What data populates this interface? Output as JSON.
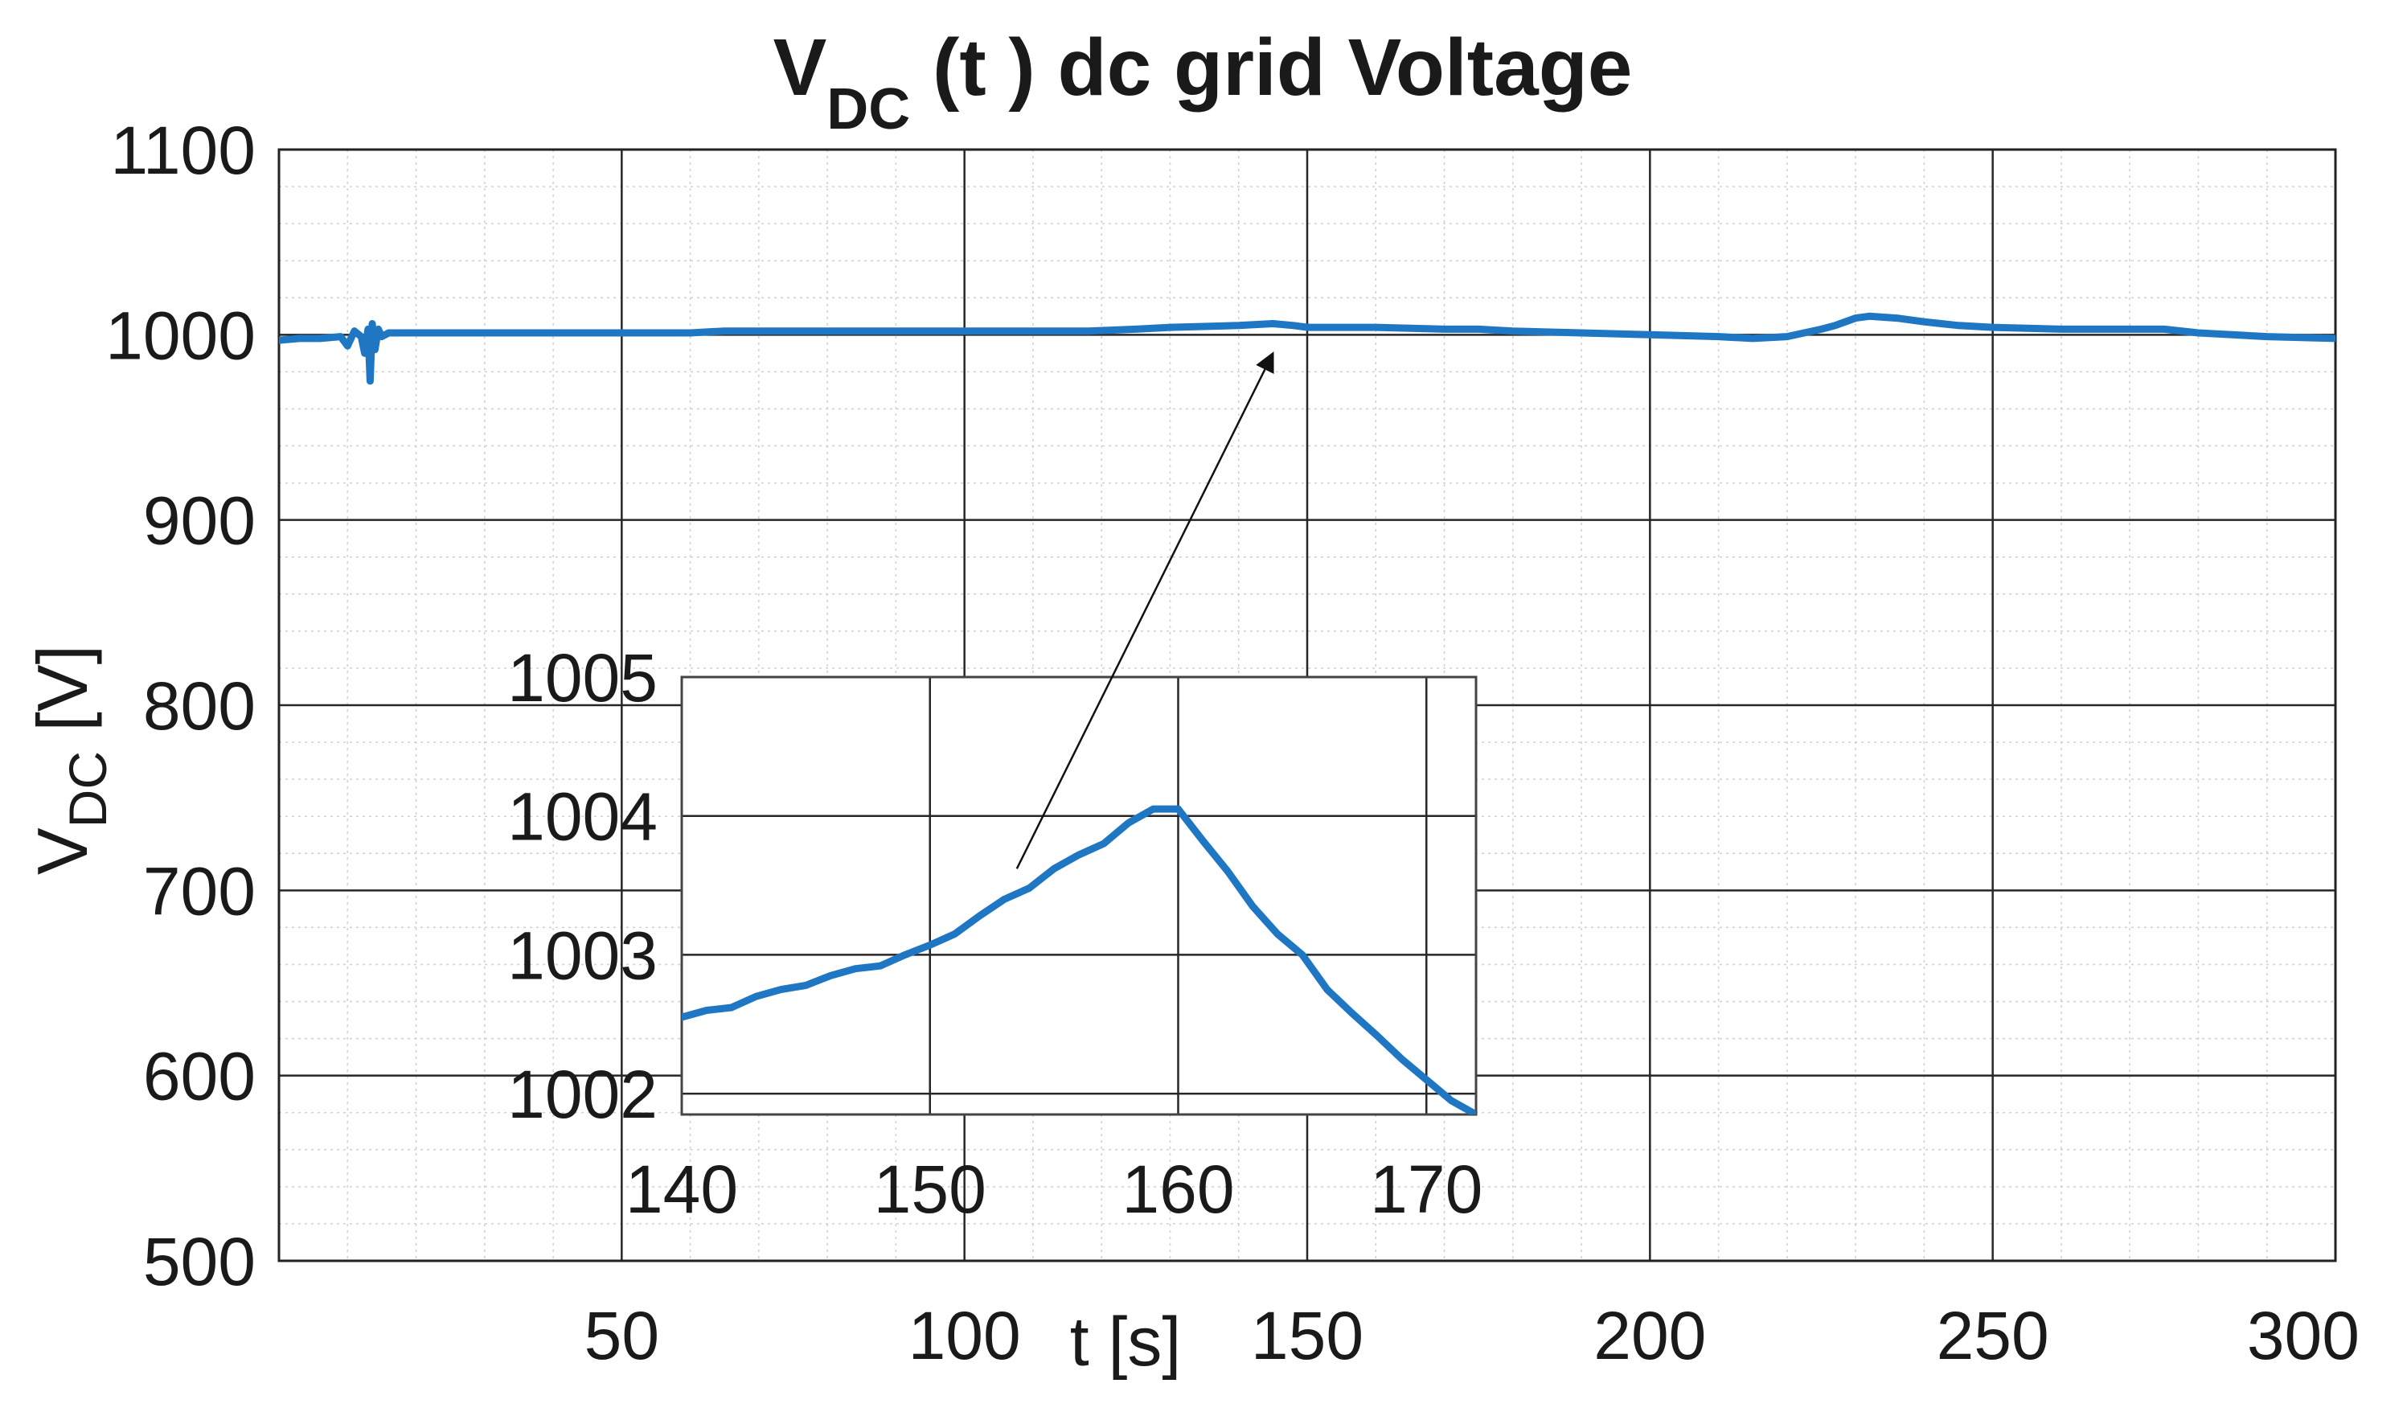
{
  "chart_data": {
    "type": "line",
    "title": {
      "main": "V",
      "subscript": "DC",
      "rest": " (t )  dc grid Voltage"
    },
    "xlabel": "t [s]",
    "ylabel": {
      "main": "V",
      "subscript": "DC",
      "unit": " [V]"
    },
    "xlim": [
      0,
      300
    ],
    "ylim": [
      500,
      1100
    ],
    "x_ticks": [
      50,
      100,
      150,
      200,
      250,
      300
    ],
    "x_tick_labels": [
      "50",
      "100",
      "150",
      "200",
      "250",
      "300"
    ],
    "y_ticks": [
      500,
      600,
      700,
      800,
      900,
      1000,
      1100
    ],
    "y_tick_labels": [
      "500",
      "600",
      "700",
      "800",
      "900",
      "1000",
      "1100"
    ],
    "grid": "major and minor",
    "line_color": "#1f77c4",
    "series": [
      {
        "name": "VDC",
        "x": [
          0,
          3,
          6,
          9,
          10,
          11,
          12,
          12.5,
          13,
          13.3,
          13.6,
          14,
          14.5,
          15,
          16,
          20,
          30,
          40,
          50,
          60,
          65,
          68,
          80,
          90,
          100,
          110,
          118,
          125,
          130,
          140,
          145,
          148,
          150,
          155,
          160,
          170,
          175,
          180,
          190,
          200,
          210,
          215,
          220,
          225,
          227,
          230,
          232,
          236,
          240,
          245,
          250,
          260,
          270,
          275,
          280,
          290,
          300
        ],
        "y": [
          997,
          998,
          998,
          999,
          994,
          1002,
          999,
          990,
          1003,
          975,
          1006,
          992,
          1003,
          999,
          1001,
          1001,
          1001,
          1001,
          1001,
          1001,
          1002,
          1002,
          1002,
          1002,
          1002,
          1002,
          1002,
          1003,
          1004,
          1005,
          1006,
          1005,
          1004,
          1004,
          1004,
          1003,
          1003,
          1002,
          1001,
          1000,
          999,
          998,
          999,
          1003,
          1005,
          1009,
          1010,
          1009,
          1007,
          1005,
          1004,
          1003,
          1003,
          1003,
          1001,
          999,
          998
        ]
      }
    ],
    "inset": {
      "xlim": [
        140,
        172
      ],
      "ylim": [
        1001.85,
        1005
      ],
      "x_ticks": [
        140,
        150,
        160,
        170
      ],
      "x_tick_labels": [
        "140",
        "150",
        "160",
        "170"
      ],
      "y_ticks": [
        1002,
        1003,
        1004,
        1005
      ],
      "y_tick_labels": [
        "1002",
        "1003",
        "1004",
        "1005"
      ],
      "x": [
        140,
        141,
        142,
        143,
        144,
        145,
        146,
        147,
        148,
        149,
        150,
        151,
        152,
        153,
        154,
        155,
        156,
        157,
        158,
        159,
        160,
        161,
        162,
        163,
        164,
        165,
        166,
        167,
        168,
        169,
        170,
        171,
        172
      ],
      "y": [
        1002.55,
        1002.6,
        1002.62,
        1002.7,
        1002.75,
        1002.78,
        1002.85,
        1002.9,
        1002.92,
        1003.0,
        1003.07,
        1003.15,
        1003.28,
        1003.4,
        1003.48,
        1003.62,
        1003.72,
        1003.8,
        1003.95,
        1004.05,
        1004.05,
        1003.82,
        1003.6,
        1003.35,
        1003.15,
        1003.0,
        1002.75,
        1002.58,
        1002.42,
        1002.25,
        1002.1,
        1001.95,
        1001.85
      ]
    },
    "annotation": {
      "type": "arrow",
      "from_inset": {
        "x": 153.5,
        "y": 1003.62
      },
      "to_main": {
        "x": 145,
        "y": 990
      }
    }
  }
}
